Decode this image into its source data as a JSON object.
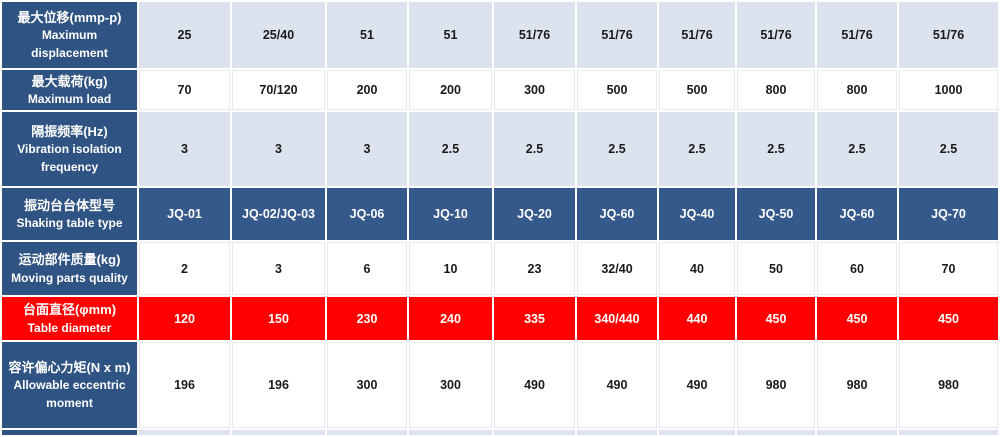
{
  "colors": {
    "header_blue": "#2f5382",
    "model_row_blue": "#36598c",
    "light_row_blue": "#dce3ef",
    "highlight_red": "#fe0000",
    "white_cell_border": "#e7eaed",
    "text_dark": "#1a1a1a",
    "text_white": "#ffffff"
  },
  "table": {
    "rows": [
      {
        "id": "max-displacement",
        "zh": "最大位移(mmp-p)",
        "en": "Maximum displacement",
        "style": "light",
        "values": [
          "25",
          "25/40",
          "51",
          "51",
          "51/76",
          "51/76",
          "51/76",
          "51/76",
          "51/76",
          "51/76"
        ]
      },
      {
        "id": "max-load",
        "zh": "最大载荷(kg)",
        "en": "Maximum load",
        "style": "white",
        "values": [
          "70",
          "70/120",
          "200",
          "200",
          "300",
          "500",
          "500",
          "800",
          "800",
          "1000"
        ]
      },
      {
        "id": "vibration-isolation-frequency",
        "zh": "隔振频率(Hz)",
        "en": "Vibration isolation frequency",
        "style": "light",
        "values": [
          "3",
          "3",
          "3",
          "2.5",
          "2.5",
          "2.5",
          "2.5",
          "2.5",
          "2.5",
          "2.5"
        ]
      },
      {
        "id": "shaking-table-type",
        "zh": "振动台台体型号",
        "en": "Shaking table type",
        "style": "blue",
        "values": [
          "JQ-01",
          "JQ-02/JQ-03",
          "JQ-06",
          "JQ-10",
          "JQ-20",
          "JQ-60",
          "JQ-40",
          "JQ-50",
          "JQ-60",
          "JQ-70"
        ]
      },
      {
        "id": "moving-parts-quality",
        "zh": "运动部件质量(kg)",
        "en": "Moving parts quality",
        "style": "white",
        "values": [
          "2",
          "3",
          "6",
          "10",
          "23",
          "32/40",
          "40",
          "50",
          "60",
          "70"
        ]
      },
      {
        "id": "table-diameter",
        "zh": "台面直径(φmm)",
        "en": "Table diameter",
        "style": "red",
        "values": [
          "120",
          "150",
          "230",
          "240",
          "335",
          "340/440",
          "440",
          "450",
          "450",
          "450"
        ]
      },
      {
        "id": "allowable-eccentric-moment",
        "zh": "容许偏心力矩(N x m)",
        "en": "Allowable eccentric moment",
        "style": "white",
        "values": [
          "196",
          "196",
          "300",
          "300",
          "490",
          "490",
          "490",
          "980",
          "980",
          "980"
        ]
      },
      {
        "id": "partial-row",
        "zh": "",
        "en": "",
        "style": "light",
        "values": [
          "",
          "",
          "",
          "",
          "",
          "",
          "",
          "",
          "",
          ""
        ]
      }
    ]
  },
  "chart_data": {
    "type": "table",
    "row_headers_zh": [
      "最大位移(mmp-p)",
      "最大载荷(kg)",
      "隔振频率(Hz)",
      "振动台台体型号",
      "运动部件质量(kg)",
      "台面直径(φmm)",
      "容许偏心力矩(N x m)"
    ],
    "row_headers_en": [
      "Maximum displacement",
      "Maximum load",
      "Vibration isolation frequency",
      "Shaking table type",
      "Moving parts quality",
      "Table diameter",
      "Allowable eccentric moment"
    ],
    "rows": [
      [
        "25",
        "25/40",
        "51",
        "51",
        "51/76",
        "51/76",
        "51/76",
        "51/76",
        "51/76",
        "51/76"
      ],
      [
        "70",
        "70/120",
        "200",
        "200",
        "300",
        "500",
        "500",
        "800",
        "800",
        "1000"
      ],
      [
        "3",
        "3",
        "3",
        "2.5",
        "2.5",
        "2.5",
        "2.5",
        "2.5",
        "2.5",
        "2.5"
      ],
      [
        "JQ-01",
        "JQ-02/JQ-03",
        "JQ-06",
        "JQ-10",
        "JQ-20",
        "JQ-60",
        "JQ-40",
        "JQ-50",
        "JQ-60",
        "JQ-70"
      ],
      [
        "2",
        "3",
        "6",
        "10",
        "23",
        "32/40",
        "40",
        "50",
        "60",
        "70"
      ],
      [
        "120",
        "150",
        "230",
        "240",
        "335",
        "340/440",
        "440",
        "450",
        "450",
        "450"
      ],
      [
        "196",
        "196",
        "300",
        "300",
        "490",
        "490",
        "490",
        "980",
        "980",
        "980"
      ]
    ],
    "highlighted_row_index": 5,
    "highlight_color": "#fe0000"
  }
}
